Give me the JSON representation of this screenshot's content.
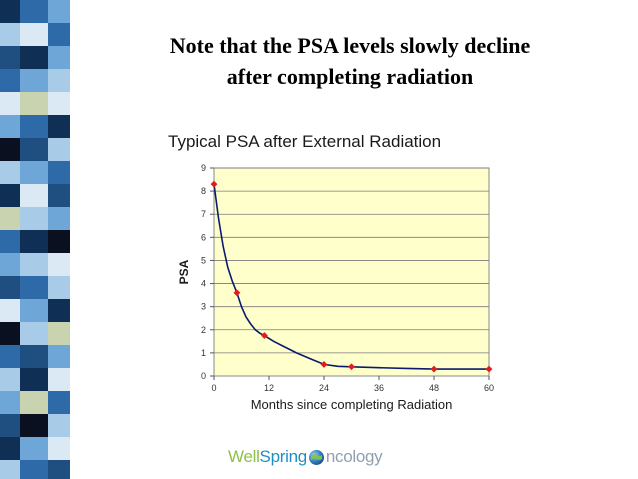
{
  "slide": {
    "title_line1": "Note that the PSA levels slowly decline",
    "title_line2": "after completing radiation"
  },
  "logo": {
    "part1": "Well",
    "part2": "Spring",
    "part3": "ncology",
    "icon": "globe-icon"
  },
  "colors": {
    "plot_background": "#ffffcc",
    "line": "#0a1a70",
    "marker": "#e01e1e",
    "stripe_palette": [
      "#0f2f55",
      "#2f6aa8",
      "#6ea6d8",
      "#a8cbe8",
      "#dbe9f4",
      "#c9d3b0",
      "#1f4f80",
      "#0a1020",
      "#ffffff"
    ]
  },
  "chart_data": {
    "type": "line",
    "title": "Typical PSA after External Radiation",
    "xlabel": "Months since completing Radiation",
    "ylabel": "PSA",
    "xlim": [
      0,
      60
    ],
    "ylim": [
      0,
      9
    ],
    "xticks": [
      0,
      12,
      24,
      36,
      48,
      60
    ],
    "yticks": [
      0,
      1,
      2,
      3,
      4,
      5,
      6,
      7,
      8,
      9
    ],
    "grid": "horizontal",
    "legend": "none",
    "series": [
      {
        "points": [
          [
            0,
            8.3
          ],
          [
            5,
            3.6
          ],
          [
            11,
            1.75
          ],
          [
            24,
            0.5
          ],
          [
            30,
            0.4
          ],
          [
            48,
            0.3
          ],
          [
            60,
            0.3
          ]
        ],
        "curve": [
          [
            0,
            8.3
          ],
          [
            1,
            6.8
          ],
          [
            2,
            5.6
          ],
          [
            3,
            4.7
          ],
          [
            4,
            4.1
          ],
          [
            5,
            3.6
          ],
          [
            6,
            3.0
          ],
          [
            7,
            2.55
          ],
          [
            8,
            2.25
          ],
          [
            9,
            2.0
          ],
          [
            10,
            1.85
          ],
          [
            11,
            1.75
          ],
          [
            13,
            1.5
          ],
          [
            15,
            1.3
          ],
          [
            18,
            1.0
          ],
          [
            21,
            0.75
          ],
          [
            24,
            0.5
          ],
          [
            27,
            0.42
          ],
          [
            30,
            0.4
          ],
          [
            36,
            0.36
          ],
          [
            42,
            0.33
          ],
          [
            48,
            0.3
          ],
          [
            54,
            0.3
          ],
          [
            60,
            0.3
          ]
        ]
      }
    ]
  }
}
